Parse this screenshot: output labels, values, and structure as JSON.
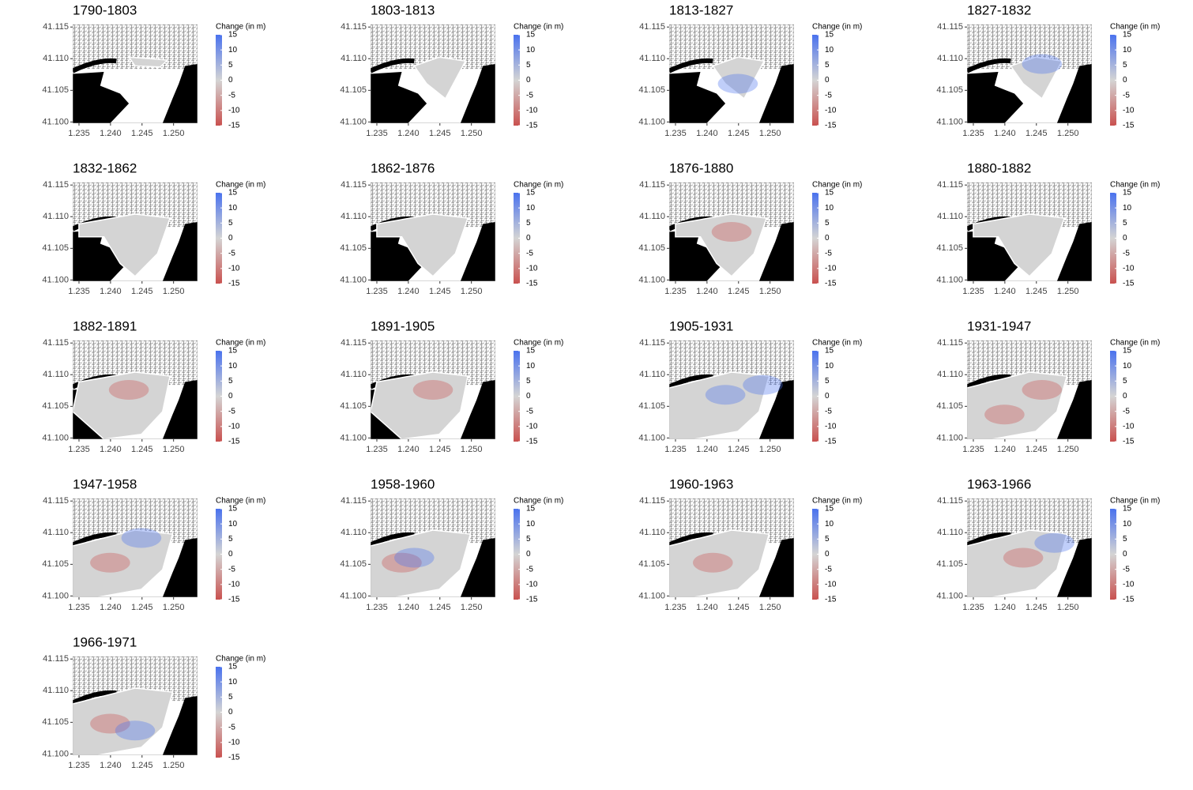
{
  "chart_data": [
    {
      "type": "map",
      "title": "1790-1803",
      "xlim": [
        1.234,
        1.2538
      ],
      "ylim": [
        41.0998,
        41.1154
      ],
      "xticks": [
        1.235,
        {
          "value": 1.24,
          "label": "1.240"
        },
        1.245,
        {
          "value": 1.25,
          "label": "1.250"
        }
      ],
      "yticks": [
        {
          "value": 41.1,
          "label": "41.100"
        },
        41.105,
        {
          "value": 41.11,
          "label": "41.110"
        },
        41.115
      ],
      "colorbar": {
        "title": "Change (in m)",
        "lim": [
          -15,
          15
        ],
        "ticks": [
          15,
          10,
          5,
          0,
          -5,
          -10,
          -15
        ],
        "colors": [
          "#c9514f",
          "#d4d4d4",
          "#4a72ee"
        ]
      }
    },
    {
      "type": "map",
      "title": "1803-1813",
      "xlim": [
        1.234,
        1.2538
      ],
      "ylim": [
        41.0998,
        41.1154
      ],
      "xticks": [
        1.235,
        {
          "value": 1.24,
          "label": "1.240"
        },
        1.245,
        {
          "value": 1.25,
          "label": "1.250"
        }
      ],
      "yticks": [
        {
          "value": 41.1,
          "label": "41.100"
        },
        41.105,
        {
          "value": 41.11,
          "label": "41.110"
        },
        41.115
      ],
      "colorbar": {
        "title": "Change (in m)",
        "lim": [
          -15,
          15
        ],
        "ticks": [
          15,
          10,
          5,
          0,
          -5,
          -10,
          -15
        ],
        "colors": [
          "#c9514f",
          "#d4d4d4",
          "#4a72ee"
        ]
      }
    },
    {
      "type": "map",
      "title": "1813-1827",
      "xlim": [
        1.234,
        1.2538
      ],
      "ylim": [
        41.0998,
        41.1154
      ],
      "xticks": [
        1.235,
        {
          "value": 1.24,
          "label": "1.240"
        },
        1.245,
        {
          "value": 1.25,
          "label": "1.250"
        }
      ],
      "yticks": [
        {
          "value": 41.1,
          "label": "41.100"
        },
        41.105,
        {
          "value": 41.11,
          "label": "41.110"
        },
        41.115
      ],
      "colorbar": {
        "title": "Change (in m)",
        "lim": [
          -15,
          15
        ],
        "ticks": [
          15,
          10,
          5,
          0,
          -5,
          -10,
          -15
        ],
        "colors": [
          "#c9514f",
          "#d4d4d4",
          "#4a72ee"
        ]
      }
    },
    {
      "type": "map",
      "title": "1827-1832",
      "xlim": [
        1.234,
        1.2538
      ],
      "ylim": [
        41.0998,
        41.1154
      ],
      "xticks": [
        1.235,
        {
          "value": 1.24,
          "label": "1.240"
        },
        1.245,
        {
          "value": 1.25,
          "label": "1.250"
        }
      ],
      "yticks": [
        {
          "value": 41.1,
          "label": "41.100"
        },
        41.105,
        {
          "value": 41.11,
          "label": "41.110"
        },
        41.115
      ],
      "colorbar": {
        "title": "Change (in m)",
        "lim": [
          -15,
          15
        ],
        "ticks": [
          15,
          10,
          5,
          0,
          -5,
          -10,
          -15
        ],
        "colors": [
          "#c9514f",
          "#d4d4d4",
          "#4a72ee"
        ]
      }
    },
    {
      "type": "map",
      "title": "1832-1862",
      "xlim": [
        1.234,
        1.2538
      ],
      "ylim": [
        41.0998,
        41.1154
      ],
      "xticks": [
        1.235,
        {
          "value": 1.24,
          "label": "1.240"
        },
        1.245,
        {
          "value": 1.25,
          "label": "1.250"
        }
      ],
      "yticks": [
        {
          "value": 41.1,
          "label": "41.100"
        },
        41.105,
        {
          "value": 41.11,
          "label": "41.110"
        },
        41.115
      ],
      "colorbar": {
        "title": "Change (in m)",
        "lim": [
          -15,
          15
        ],
        "ticks": [
          15,
          10,
          5,
          0,
          -5,
          -10,
          -15
        ],
        "colors": [
          "#c9514f",
          "#d4d4d4",
          "#4a72ee"
        ]
      }
    },
    {
      "type": "map",
      "title": "1862-1876",
      "xlim": [
        1.234,
        1.2538
      ],
      "ylim": [
        41.0998,
        41.1154
      ],
      "xticks": [
        1.235,
        {
          "value": 1.24,
          "label": "1.240"
        },
        1.245,
        {
          "value": 1.25,
          "label": "1.250"
        }
      ],
      "yticks": [
        {
          "value": 41.1,
          "label": "41.100"
        },
        41.105,
        {
          "value": 41.11,
          "label": "41.110"
        },
        41.115
      ],
      "colorbar": {
        "title": "Change (in m)",
        "lim": [
          -15,
          15
        ],
        "ticks": [
          15,
          10,
          5,
          0,
          -5,
          -10,
          -15
        ],
        "colors": [
          "#c9514f",
          "#d4d4d4",
          "#4a72ee"
        ]
      }
    },
    {
      "type": "map",
      "title": "1876-1880",
      "xlim": [
        1.234,
        1.2538
      ],
      "ylim": [
        41.0998,
        41.1154
      ],
      "xticks": [
        1.235,
        {
          "value": 1.24,
          "label": "1.240"
        },
        1.245,
        {
          "value": 1.25,
          "label": "1.250"
        }
      ],
      "yticks": [
        {
          "value": 41.1,
          "label": "41.100"
        },
        41.105,
        {
          "value": 41.11,
          "label": "41.110"
        },
        41.115
      ],
      "colorbar": {
        "title": "Change (in m)",
        "lim": [
          -15,
          15
        ],
        "ticks": [
          15,
          10,
          5,
          0,
          -5,
          -10,
          -15
        ],
        "colors": [
          "#c9514f",
          "#d4d4d4",
          "#4a72ee"
        ]
      }
    },
    {
      "type": "map",
      "title": "1880-1882",
      "xlim": [
        1.234,
        1.2538
      ],
      "ylim": [
        41.0998,
        41.1154
      ],
      "xticks": [
        1.235,
        {
          "value": 1.24,
          "label": "1.240"
        },
        1.245,
        {
          "value": 1.25,
          "label": "1.250"
        }
      ],
      "yticks": [
        {
          "value": 41.1,
          "label": "41.100"
        },
        41.105,
        {
          "value": 41.11,
          "label": "41.110"
        },
        41.115
      ],
      "colorbar": {
        "title": "Change (in m)",
        "lim": [
          -15,
          15
        ],
        "ticks": [
          15,
          10,
          5,
          0,
          -5,
          -10,
          -15
        ],
        "colors": [
          "#c9514f",
          "#d4d4d4",
          "#4a72ee"
        ]
      }
    },
    {
      "type": "map",
      "title": "1882-1891",
      "xlim": [
        1.234,
        1.2538
      ],
      "ylim": [
        41.0998,
        41.1154
      ],
      "xticks": [
        1.235,
        {
          "value": 1.24,
          "label": "1.240"
        },
        1.245,
        {
          "value": 1.25,
          "label": "1.250"
        }
      ],
      "yticks": [
        {
          "value": 41.1,
          "label": "41.100"
        },
        41.105,
        {
          "value": 41.11,
          "label": "41.110"
        },
        41.115
      ],
      "colorbar": {
        "title": "Change (in m)",
        "lim": [
          -15,
          15
        ],
        "ticks": [
          15,
          10,
          5,
          0,
          -5,
          -10,
          -15
        ],
        "colors": [
          "#c9514f",
          "#d4d4d4",
          "#4a72ee"
        ]
      }
    },
    {
      "type": "map",
      "title": "1891-1905",
      "xlim": [
        1.234,
        1.2538
      ],
      "ylim": [
        41.0998,
        41.1154
      ],
      "xticks": [
        1.235,
        {
          "value": 1.24,
          "label": "1.240"
        },
        1.245,
        {
          "value": 1.25,
          "label": "1.250"
        }
      ],
      "yticks": [
        {
          "value": 41.1,
          "label": "41.100"
        },
        41.105,
        {
          "value": 41.11,
          "label": "41.110"
        },
        41.115
      ],
      "colorbar": {
        "title": "Change (in m)",
        "lim": [
          -15,
          15
        ],
        "ticks": [
          15,
          10,
          5,
          0,
          -5,
          -10,
          -15
        ],
        "colors": [
          "#c9514f",
          "#d4d4d4",
          "#4a72ee"
        ]
      }
    },
    {
      "type": "map",
      "title": "1905-1931",
      "xlim": [
        1.234,
        1.2538
      ],
      "ylim": [
        41.0998,
        41.1154
      ],
      "xticks": [
        1.235,
        {
          "value": 1.24,
          "label": "1.240"
        },
        1.245,
        {
          "value": 1.25,
          "label": "1.250"
        }
      ],
      "yticks": [
        {
          "value": 41.1,
          "label": "41.100"
        },
        41.105,
        {
          "value": 41.11,
          "label": "41.110"
        },
        41.115
      ],
      "colorbar": {
        "title": "Change (in m)",
        "lim": [
          -15,
          15
        ],
        "ticks": [
          15,
          10,
          5,
          0,
          -5,
          -10,
          -15
        ],
        "colors": [
          "#c9514f",
          "#d4d4d4",
          "#4a72ee"
        ]
      }
    },
    {
      "type": "map",
      "title": "1931-1947",
      "xlim": [
        1.234,
        1.2538
      ],
      "ylim": [
        41.0998,
        41.1154
      ],
      "xticks": [
        1.235,
        {
          "value": 1.24,
          "label": "1.240"
        },
        1.245,
        {
          "value": 1.25,
          "label": "1.250"
        }
      ],
      "yticks": [
        {
          "value": 41.1,
          "label": "41.100"
        },
        41.105,
        {
          "value": 41.11,
          "label": "41.110"
        },
        41.115
      ],
      "colorbar": {
        "title": "Change (in m)",
        "lim": [
          -15,
          15
        ],
        "ticks": [
          15,
          10,
          5,
          0,
          -5,
          -10,
          -15
        ],
        "colors": [
          "#c9514f",
          "#d4d4d4",
          "#4a72ee"
        ]
      }
    },
    {
      "type": "map",
      "title": "1947-1958",
      "xlim": [
        1.234,
        1.2538
      ],
      "ylim": [
        41.0998,
        41.1154
      ],
      "xticks": [
        1.235,
        {
          "value": 1.24,
          "label": "1.240"
        },
        1.245,
        {
          "value": 1.25,
          "label": "1.250"
        }
      ],
      "yticks": [
        {
          "value": 41.1,
          "label": "41.100"
        },
        41.105,
        {
          "value": 41.11,
          "label": "41.110"
        },
        41.115
      ],
      "colorbar": {
        "title": "Change (in m)",
        "lim": [
          -15,
          15
        ],
        "ticks": [
          15,
          10,
          5,
          0,
          -5,
          -10,
          -15
        ],
        "colors": [
          "#c9514f",
          "#d4d4d4",
          "#4a72ee"
        ]
      }
    },
    {
      "type": "map",
      "title": "1958-1960",
      "xlim": [
        1.234,
        1.2538
      ],
      "ylim": [
        41.0998,
        41.1154
      ],
      "xticks": [
        1.235,
        {
          "value": 1.24,
          "label": "1.240"
        },
        1.245,
        {
          "value": 1.25,
          "label": "1.250"
        }
      ],
      "yticks": [
        {
          "value": 41.1,
          "label": "41.100"
        },
        41.105,
        {
          "value": 41.11,
          "label": "41.110"
        },
        41.115
      ],
      "colorbar": {
        "title": "Change (in m)",
        "lim": [
          -15,
          15
        ],
        "ticks": [
          15,
          10,
          5,
          0,
          -5,
          -10,
          -15
        ],
        "colors": [
          "#c9514f",
          "#d4d4d4",
          "#4a72ee"
        ]
      }
    },
    {
      "type": "map",
      "title": "1960-1963",
      "xlim": [
        1.234,
        1.2538
      ],
      "ylim": [
        41.0998,
        41.1154
      ],
      "xticks": [
        1.235,
        {
          "value": 1.24,
          "label": "1.240"
        },
        1.245,
        {
          "value": 1.25,
          "label": "1.250"
        }
      ],
      "yticks": [
        {
          "value": 41.1,
          "label": "41.100"
        },
        41.105,
        {
          "value": 41.11,
          "label": "41.110"
        },
        41.115
      ],
      "colorbar": {
        "title": "Change (in m)",
        "lim": [
          -15,
          15
        ],
        "ticks": [
          15,
          10,
          5,
          0,
          -5,
          -10,
          -15
        ],
        "colors": [
          "#c9514f",
          "#d4d4d4",
          "#4a72ee"
        ]
      }
    },
    {
      "type": "map",
      "title": "1963-1966",
      "xlim": [
        1.234,
        1.2538
      ],
      "ylim": [
        41.0998,
        41.1154
      ],
      "xticks": [
        1.235,
        {
          "value": 1.24,
          "label": "1.240"
        },
        1.245,
        {
          "value": 1.25,
          "label": "1.250"
        }
      ],
      "yticks": [
        {
          "value": 41.1,
          "label": "41.100"
        },
        41.105,
        {
          "value": 41.11,
          "label": "41.110"
        },
        41.115
      ],
      "colorbar": {
        "title": "Change (in m)",
        "lim": [
          -15,
          15
        ],
        "ticks": [
          15,
          10,
          5,
          0,
          -5,
          -10,
          -15
        ],
        "colors": [
          "#c9514f",
          "#d4d4d4",
          "#4a72ee"
        ]
      }
    },
    {
      "type": "map",
      "title": "1966-1971",
      "xlim": [
        1.234,
        1.2538
      ],
      "ylim": [
        41.0998,
        41.1154
      ],
      "xticks": [
        1.235,
        {
          "value": 1.24,
          "label": "1.240"
        },
        1.245,
        {
          "value": 1.25,
          "label": "1.250"
        }
      ],
      "yticks": [
        {
          "value": 41.1,
          "label": "41.100"
        },
        41.105,
        {
          "value": 41.11,
          "label": "41.110"
        },
        41.115
      ],
      "colorbar": {
        "title": "Change (in m)",
        "lim": [
          -15,
          15
        ],
        "ticks": [
          15,
          10,
          5,
          0,
          -5,
          -10,
          -15
        ],
        "colors": [
          "#c9514f",
          "#d4d4d4",
          "#4a72ee"
        ]
      }
    }
  ]
}
